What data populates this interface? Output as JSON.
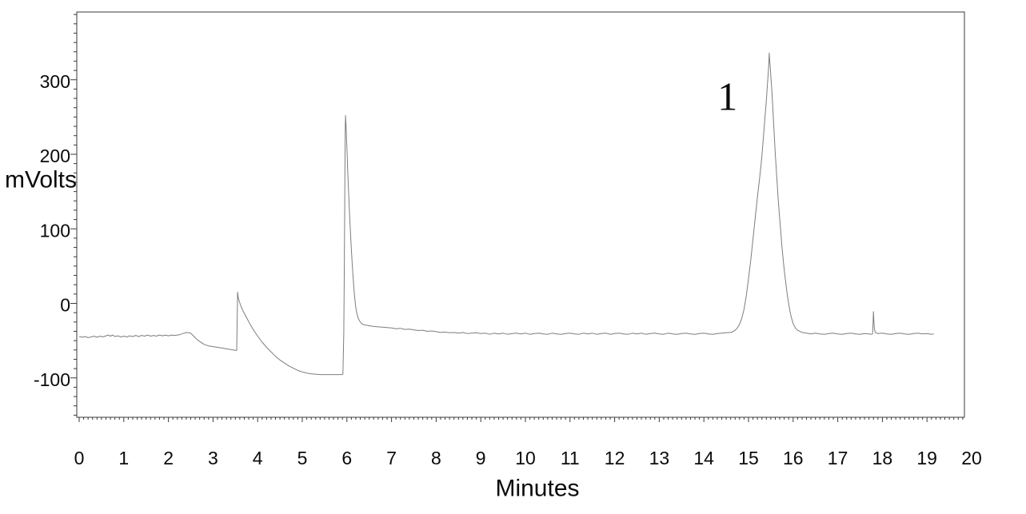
{
  "page": {
    "background": "#ffffff"
  },
  "chart_data": {
    "type": "line",
    "title": "",
    "xlabel": "Minutes",
    "ylabel": "mVolts",
    "xlim": [
      -0.05,
      19.84
    ],
    "ylim": [
      -153,
      391
    ],
    "grid": false,
    "legend_position": "none",
    "line_color": "#7d7d7d",
    "x_ticks": {
      "major_step": 1,
      "minor_step": 0.1,
      "labels": [
        "0",
        "1",
        "2",
        "3",
        "4",
        "5",
        "6",
        "7",
        "8",
        "9",
        "10",
        "11",
        "12",
        "13",
        "14",
        "15",
        "16",
        "17",
        "18",
        "19",
        "20"
      ]
    },
    "y_ticks": {
      "major_step": 100,
      "minor_step": 12.5,
      "label_values": [
        -100,
        0,
        100,
        200,
        300
      ],
      "labels": [
        "-100",
        "0",
        "100",
        "200",
        "300"
      ]
    },
    "annotations": [
      {
        "text": "1",
        "t_min": 14.53,
        "mV": 278
      }
    ],
    "peaks": [
      {
        "label": "1",
        "retention_min": 15.46,
        "apex_mV": 336
      },
      {
        "label": "",
        "retention_min": 5.97,
        "apex_mV": 252
      },
      {
        "label": "",
        "retention_min": 17.8,
        "apex_mV": -11
      }
    ],
    "baseline_mV_approx": -41,
    "series": [
      {
        "name": "detector-signal",
        "points": [
          [
            0,
            -44.5
          ],
          [
            0.07,
            -45.5
          ],
          [
            0.13,
            -44.5
          ],
          [
            0.2,
            -46
          ],
          [
            0.27,
            -45
          ],
          [
            0.33,
            -44
          ],
          [
            0.4,
            -45.5
          ],
          [
            0.47,
            -44
          ],
          [
            0.53,
            -45
          ],
          [
            0.6,
            -43.5
          ],
          [
            0.65,
            -42.5
          ],
          [
            0.7,
            -44
          ],
          [
            0.75,
            -42.5
          ],
          [
            0.8,
            -44.5
          ],
          [
            0.87,
            -43.5
          ],
          [
            0.93,
            -45
          ],
          [
            1.0,
            -44
          ],
          [
            1.07,
            -45
          ],
          [
            1.13,
            -43.5
          ],
          [
            1.2,
            -44.5
          ],
          [
            1.27,
            -43
          ],
          [
            1.33,
            -44.5
          ],
          [
            1.4,
            -43
          ],
          [
            1.47,
            -44
          ],
          [
            1.53,
            -42.5
          ],
          [
            1.6,
            -44
          ],
          [
            1.67,
            -43
          ],
          [
            1.73,
            -44
          ],
          [
            1.8,
            -42.5
          ],
          [
            1.87,
            -43.5
          ],
          [
            1.93,
            -42.5
          ],
          [
            2.0,
            -43.5
          ],
          [
            2.07,
            -42.5
          ],
          [
            2.13,
            -43
          ],
          [
            2.2,
            -42.5
          ],
          [
            2.25,
            -42
          ],
          [
            2.3,
            -41
          ],
          [
            2.35,
            -40
          ],
          [
            2.4,
            -39
          ],
          [
            2.45,
            -39.5
          ],
          [
            2.5,
            -40
          ],
          [
            2.55,
            -43
          ],
          [
            2.6,
            -46
          ],
          [
            2.65,
            -49
          ],
          [
            2.7,
            -51
          ],
          [
            2.75,
            -53
          ],
          [
            2.8,
            -55
          ],
          [
            2.9,
            -57
          ],
          [
            3.0,
            -58
          ],
          [
            3.1,
            -59
          ],
          [
            3.2,
            -60
          ],
          [
            3.3,
            -61
          ],
          [
            3.4,
            -62
          ],
          [
            3.5,
            -63
          ],
          [
            3.53,
            -63
          ],
          [
            3.55,
            15
          ],
          [
            3.57,
            6
          ],
          [
            3.62,
            -3
          ],
          [
            3.68,
            -11
          ],
          [
            3.75,
            -19
          ],
          [
            3.82,
            -27
          ],
          [
            3.9,
            -35
          ],
          [
            4.0,
            -44
          ],
          [
            4.1,
            -52
          ],
          [
            4.2,
            -59
          ],
          [
            4.3,
            -65
          ],
          [
            4.4,
            -71
          ],
          [
            4.5,
            -76
          ],
          [
            4.6,
            -80
          ],
          [
            4.7,
            -84
          ],
          [
            4.8,
            -87
          ],
          [
            4.9,
            -90
          ],
          [
            5.0,
            -92
          ],
          [
            5.1,
            -93.5
          ],
          [
            5.2,
            -94.5
          ],
          [
            5.3,
            -95
          ],
          [
            5.4,
            -95.5
          ],
          [
            5.5,
            -95.5
          ],
          [
            5.6,
            -95.5
          ],
          [
            5.7,
            -95.5
          ],
          [
            5.8,
            -95.5
          ],
          [
            5.88,
            -95.5
          ],
          [
            5.91,
            -95
          ],
          [
            5.93,
            -40
          ],
          [
            5.94,
            40
          ],
          [
            5.95,
            120
          ],
          [
            5.955,
            175
          ],
          [
            5.96,
            218
          ],
          [
            5.965,
            240
          ],
          [
            5.97,
            252
          ],
          [
            5.975,
            244
          ],
          [
            5.98,
            240
          ],
          [
            5.99,
            224
          ],
          [
            6.0,
            208
          ],
          [
            6.01,
            192
          ],
          [
            6.02,
            175
          ],
          [
            6.04,
            148
          ],
          [
            6.06,
            120
          ],
          [
            6.08,
            94
          ],
          [
            6.1,
            72
          ],
          [
            6.12,
            52
          ],
          [
            6.14,
            34
          ],
          [
            6.16,
            18
          ],
          [
            6.18,
            5
          ],
          [
            6.2,
            -6
          ],
          [
            6.23,
            -15
          ],
          [
            6.26,
            -21
          ],
          [
            6.3,
            -25
          ],
          [
            6.35,
            -28
          ],
          [
            6.4,
            -29
          ],
          [
            6.5,
            -30
          ],
          [
            6.6,
            -31
          ],
          [
            6.7,
            -31.5
          ],
          [
            6.8,
            -32
          ],
          [
            6.9,
            -32.5
          ],
          [
            7.0,
            -33
          ],
          [
            7.1,
            -34
          ],
          [
            7.2,
            -33.5
          ],
          [
            7.3,
            -35
          ],
          [
            7.4,
            -34.5
          ],
          [
            7.5,
            -35.5
          ],
          [
            7.6,
            -36.5
          ],
          [
            7.7,
            -36
          ],
          [
            7.8,
            -37.5
          ],
          [
            7.9,
            -37
          ],
          [
            8.0,
            -38
          ],
          [
            8.1,
            -39
          ],
          [
            8.2,
            -38.5
          ],
          [
            8.3,
            -39.5
          ],
          [
            8.4,
            -39
          ],
          [
            8.5,
            -40
          ],
          [
            8.6,
            -39
          ],
          [
            8.7,
            -40.5
          ],
          [
            8.8,
            -40
          ],
          [
            8.9,
            -39.5
          ],
          [
            9.0,
            -40.5
          ],
          [
            9.1,
            -40
          ],
          [
            9.2,
            -41.5
          ],
          [
            9.3,
            -40
          ],
          [
            9.4,
            -41
          ],
          [
            9.5,
            -40
          ],
          [
            9.6,
            -41.5
          ],
          [
            9.7,
            -40.5
          ],
          [
            9.8,
            -40
          ],
          [
            9.9,
            -41
          ],
          [
            10.0,
            -40
          ],
          [
            10.1,
            -41.5
          ],
          [
            10.2,
            -40.5
          ],
          [
            10.3,
            -40
          ],
          [
            10.4,
            -41
          ],
          [
            10.5,
            -41.5
          ],
          [
            10.6,
            -40
          ],
          [
            10.7,
            -41
          ],
          [
            10.8,
            -41.5
          ],
          [
            10.9,
            -40.5
          ],
          [
            11.0,
            -40
          ],
          [
            11.1,
            -41
          ],
          [
            11.2,
            -41.5
          ],
          [
            11.3,
            -40
          ],
          [
            11.4,
            -41
          ],
          [
            11.5,
            -40
          ],
          [
            11.6,
            -41.5
          ],
          [
            11.7,
            -40.5
          ],
          [
            11.8,
            -40
          ],
          [
            11.9,
            -41.5
          ],
          [
            12.0,
            -40.5
          ],
          [
            12.1,
            -40
          ],
          [
            12.2,
            -41
          ],
          [
            12.3,
            -41.5
          ],
          [
            12.4,
            -40
          ],
          [
            12.5,
            -41
          ],
          [
            12.6,
            -40
          ],
          [
            12.7,
            -41.5
          ],
          [
            12.8,
            -40.5
          ],
          [
            12.9,
            -40
          ],
          [
            13.0,
            -41
          ],
          [
            13.1,
            -41.5
          ],
          [
            13.2,
            -40
          ],
          [
            13.3,
            -41
          ],
          [
            13.4,
            -41.5
          ],
          [
            13.5,
            -40.5
          ],
          [
            13.6,
            -40
          ],
          [
            13.7,
            -41
          ],
          [
            13.8,
            -41.5
          ],
          [
            13.9,
            -40.5
          ],
          [
            14.0,
            -40
          ],
          [
            14.1,
            -41
          ],
          [
            14.2,
            -41.5
          ],
          [
            14.3,
            -40.5
          ],
          [
            14.4,
            -40
          ],
          [
            14.5,
            -39.5
          ],
          [
            14.6,
            -39
          ],
          [
            14.65,
            -38
          ],
          [
            14.7,
            -36
          ],
          [
            14.75,
            -33
          ],
          [
            14.8,
            -28
          ],
          [
            14.85,
            -20
          ],
          [
            14.9,
            -8
          ],
          [
            14.95,
            10
          ],
          [
            15.0,
            33
          ],
          [
            15.05,
            58
          ],
          [
            15.1,
            86
          ],
          [
            15.15,
            115
          ],
          [
            15.2,
            143
          ],
          [
            15.25,
            168
          ],
          [
            15.28,
            185
          ],
          [
            15.31,
            205
          ],
          [
            15.34,
            228
          ],
          [
            15.37,
            250
          ],
          [
            15.4,
            272
          ],
          [
            15.42,
            290
          ],
          [
            15.44,
            308
          ],
          [
            15.45,
            316
          ],
          [
            15.455,
            322
          ],
          [
            15.46,
            330
          ],
          [
            15.465,
            336
          ],
          [
            15.475,
            326
          ],
          [
            15.485,
            318
          ],
          [
            15.5,
            305
          ],
          [
            15.52,
            288
          ],
          [
            15.54,
            268
          ],
          [
            15.56,
            245
          ],
          [
            15.58,
            222
          ],
          [
            15.6,
            200
          ],
          [
            15.63,
            172
          ],
          [
            15.66,
            145
          ],
          [
            15.69,
            120
          ],
          [
            15.72,
            98
          ],
          [
            15.75,
            76
          ],
          [
            15.78,
            57
          ],
          [
            15.81,
            40
          ],
          [
            15.84,
            25
          ],
          [
            15.87,
            11
          ],
          [
            15.9,
            0
          ],
          [
            15.93,
            -11
          ],
          [
            15.96,
            -19
          ],
          [
            16.0,
            -27
          ],
          [
            16.05,
            -33
          ],
          [
            16.1,
            -36
          ],
          [
            16.2,
            -39
          ],
          [
            16.3,
            -40
          ],
          [
            16.4,
            -41
          ],
          [
            16.5,
            -40
          ],
          [
            16.6,
            -41
          ],
          [
            16.7,
            -41.5
          ],
          [
            16.8,
            -40.5
          ],
          [
            16.9,
            -40
          ],
          [
            17.0,
            -41
          ],
          [
            17.1,
            -41.5
          ],
          [
            17.2,
            -40.5
          ],
          [
            17.3,
            -40
          ],
          [
            17.4,
            -41
          ],
          [
            17.5,
            -41.5
          ],
          [
            17.6,
            -40.5
          ],
          [
            17.7,
            -41
          ],
          [
            17.75,
            -41.5
          ],
          [
            17.78,
            -41
          ],
          [
            17.79,
            -28
          ],
          [
            17.8,
            -11
          ],
          [
            17.81,
            -24
          ],
          [
            17.82,
            -34
          ],
          [
            17.84,
            -39
          ],
          [
            17.9,
            -40.5
          ],
          [
            18.0,
            -40
          ],
          [
            18.1,
            -41
          ],
          [
            18.2,
            -41.5
          ],
          [
            18.3,
            -40.5
          ],
          [
            18.4,
            -40
          ],
          [
            18.5,
            -41
          ],
          [
            18.6,
            -41.5
          ],
          [
            18.7,
            -40.5
          ],
          [
            18.8,
            -40
          ],
          [
            18.9,
            -41
          ],
          [
            19.0,
            -40.5
          ],
          [
            19.1,
            -41.5
          ],
          [
            19.15,
            -41
          ]
        ]
      }
    ]
  }
}
